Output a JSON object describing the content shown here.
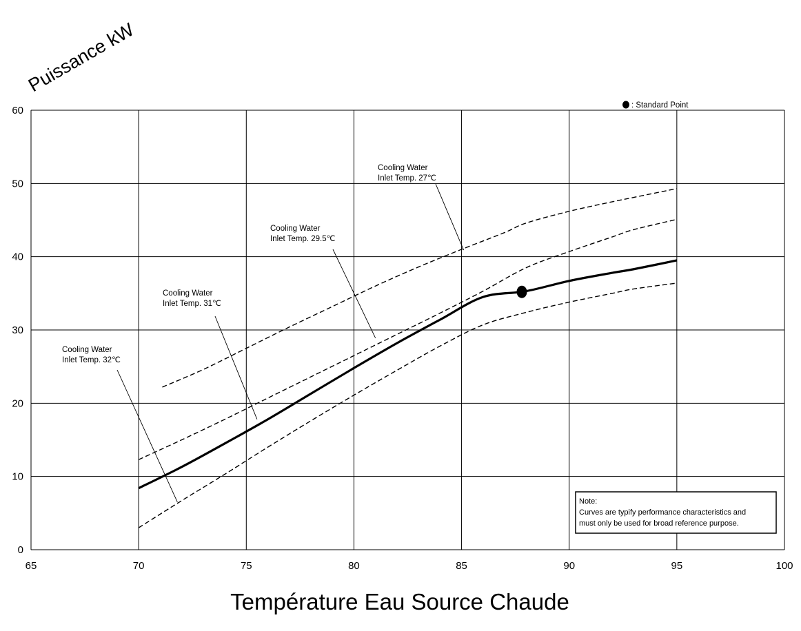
{
  "chart_data": {
    "type": "line",
    "ylabel": "Puissance kW",
    "xlabel": "Température Eau Source Chaude",
    "xlim": [
      65,
      100
    ],
    "ylim": [
      0,
      60
    ],
    "xticks": [
      65,
      70,
      75,
      80,
      85,
      90,
      95,
      100
    ],
    "yticks": [
      0,
      10,
      20,
      30,
      40,
      50,
      60
    ],
    "grid": true,
    "legend": {
      "marker_label": ": Standard Point",
      "placement": "top-right"
    },
    "series": [
      {
        "style": "dashed",
        "x": [
          71.1,
          73,
          75,
          77,
          79,
          81,
          83,
          85,
          87,
          88,
          90,
          92,
          93,
          95
        ],
        "y": [
          22.2,
          24.6,
          27.5,
          30.4,
          33.2,
          36.0,
          38.6,
          41.0,
          43.3,
          44.6,
          46.2,
          47.5,
          48.1,
          49.3
        ]
      },
      {
        "style": "dashed",
        "x": [
          70,
          72,
          74,
          76,
          78,
          80,
          82,
          84,
          86,
          88,
          90,
          92,
          93,
          95
        ],
        "y": [
          12.3,
          15.0,
          17.8,
          20.7,
          23.6,
          26.5,
          29.4,
          32.3,
          35.3,
          38.5,
          40.7,
          42.7,
          43.7,
          45.1
        ]
      },
      {
        "style": "solid",
        "x": [
          70,
          72,
          74,
          76,
          78,
          80,
          82,
          84,
          86,
          88,
          90,
          92,
          93,
          95
        ],
        "y": [
          8.4,
          11.3,
          14.5,
          17.8,
          21.3,
          24.8,
          28.2,
          31.4,
          34.5,
          35.3,
          36.7,
          37.8,
          38.3,
          39.5
        ]
      },
      {
        "style": "dashed",
        "x": [
          70,
          72,
          74,
          76,
          78,
          80,
          82,
          84,
          86,
          88,
          90,
          92,
          93,
          95
        ],
        "y": [
          3.0,
          6.7,
          10.3,
          14.0,
          17.6,
          21.1,
          24.5,
          27.8,
          30.7,
          32.4,
          33.8,
          35.0,
          35.6,
          36.4
        ]
      }
    ],
    "standard_point": {
      "x": 87.8,
      "y": 35.2
    },
    "annotations": [
      {
        "lines": [
          "Cooling Water",
          "Inlet  Temp. 32℃"
        ],
        "points_to": {
          "x": 71.8,
          "y": 6.5
        }
      },
      {
        "lines": [
          "Cooling Water",
          "Inlet  Temp. 31℃"
        ],
        "points_to": {
          "x": 75.5,
          "y": 17.8
        }
      },
      {
        "lines": [
          "Cooling Water",
          "Inlet  Temp. 29.5℃"
        ],
        "points_to": {
          "x": 81,
          "y": 28.9
        }
      },
      {
        "lines": [
          "Cooling Water",
          "Inlet Temp. 27℃"
        ],
        "points_to": {
          "x": 85.1,
          "y": 40.9
        }
      }
    ],
    "note": {
      "lines": [
        "Note:",
        "Curves are typify performance characteristics and",
        "must only be used for broad reference purpose."
      ]
    }
  }
}
